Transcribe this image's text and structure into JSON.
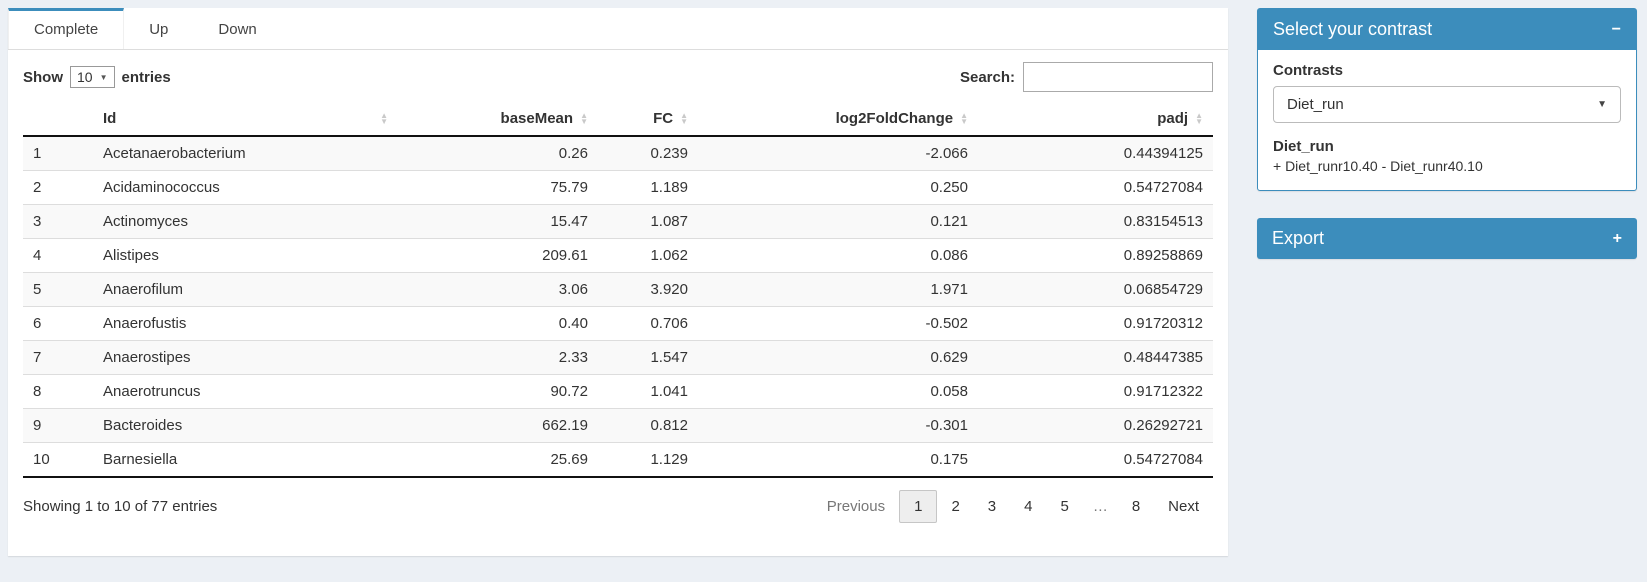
{
  "tabs": [
    {
      "label": "Complete",
      "active": true
    },
    {
      "label": "Up",
      "active": false
    },
    {
      "label": "Down",
      "active": false
    }
  ],
  "length_control": {
    "prefix": "Show",
    "value": "10",
    "suffix": "entries"
  },
  "search": {
    "label": "Search:",
    "value": ""
  },
  "table": {
    "columns": [
      {
        "key": "index",
        "label": "",
        "sortable": false
      },
      {
        "key": "id",
        "label": "Id",
        "sortable": true,
        "fill": true
      },
      {
        "key": "basemean",
        "label": "baseMean",
        "sortable": true,
        "align": "right"
      },
      {
        "key": "fc",
        "label": "FC",
        "sortable": true,
        "align": "right"
      },
      {
        "key": "log2fc",
        "label": "log2FoldChange",
        "sortable": true,
        "align": "right"
      },
      {
        "key": "padj",
        "label": "padj",
        "sortable": true,
        "align": "right"
      }
    ],
    "rows": [
      [
        "1",
        "Acetanaerobacterium",
        "0.26",
        "0.239",
        "-2.066",
        "0.44394125"
      ],
      [
        "2",
        "Acidaminococcus",
        "75.79",
        "1.189",
        "0.250",
        "0.54727084"
      ],
      [
        "3",
        "Actinomyces",
        "15.47",
        "1.087",
        "0.121",
        "0.83154513"
      ],
      [
        "4",
        "Alistipes",
        "209.61",
        "1.062",
        "0.086",
        "0.89258869"
      ],
      [
        "5",
        "Anaerofilum",
        "3.06",
        "3.920",
        "1.971",
        "0.06854729"
      ],
      [
        "6",
        "Anaerofustis",
        "0.40",
        "0.706",
        "-0.502",
        "0.91720312"
      ],
      [
        "7",
        "Anaerostipes",
        "2.33",
        "1.547",
        "0.629",
        "0.48447385"
      ],
      [
        "8",
        "Anaerotruncus",
        "90.72",
        "1.041",
        "0.058",
        "0.91712322"
      ],
      [
        "9",
        "Bacteroides",
        "662.19",
        "0.812",
        "-0.301",
        "0.26292721"
      ],
      [
        "10",
        "Barnesiella",
        "25.69",
        "1.129",
        "0.175",
        "0.54727084"
      ]
    ]
  },
  "footer": {
    "info": "Showing 1 to 10 of 77 entries",
    "pagination": [
      {
        "label": "Previous",
        "name": "previous",
        "state": "disabled"
      },
      {
        "label": "1",
        "name": "page-1",
        "state": "active"
      },
      {
        "label": "2",
        "name": "page-2"
      },
      {
        "label": "3",
        "name": "page-3"
      },
      {
        "label": "4",
        "name": "page-4"
      },
      {
        "label": "5",
        "name": "page-5"
      },
      {
        "label": "…",
        "name": "ellipsis",
        "state": "ellipsis"
      },
      {
        "label": "8",
        "name": "page-8"
      },
      {
        "label": "Next",
        "name": "next"
      }
    ]
  },
  "panels": {
    "contrast": {
      "title": "Select your contrast",
      "collapse_icon": "−",
      "label": "Contrasts",
      "selected": "Diet_run",
      "detail_title": "Diet_run",
      "detail_text": "+ Diet_runr10.40 - Diet_runr40.10"
    },
    "export": {
      "title": "Export",
      "expand_icon": "+"
    }
  },
  "colors": {
    "primary": "#3c8dbc",
    "page_bg": "#ecf0f5"
  }
}
